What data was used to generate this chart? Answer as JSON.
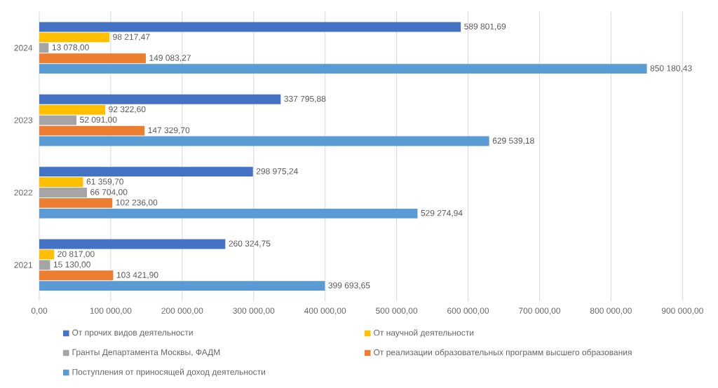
{
  "chart_data": {
    "type": "bar",
    "orientation": "horizontal",
    "categories": [
      "2024",
      "2023",
      "2022",
      "2021"
    ],
    "series": [
      {
        "name": "От прочих видов деятельности",
        "color": "#4472c4",
        "values": [
          589801.69,
          337795.88,
          298975.24,
          260324.75
        ],
        "value_labels": [
          "589 801,69",
          "337 795,88",
          "298 975,24",
          "260 324,75"
        ]
      },
      {
        "name": "От научной деятельности",
        "color": "#ffc000",
        "values": [
          98217.47,
          92322.6,
          61359.7,
          20817.0
        ],
        "value_labels": [
          "98 217,47",
          "92 322,60",
          "61 359,70",
          "20 817,00"
        ]
      },
      {
        "name": "Гранты Департамента Москвы, ФАДМ",
        "color": "#a5a5a5",
        "values": [
          13078.0,
          52091.0,
          66704.0,
          15130.0
        ],
        "value_labels": [
          "13 078,00",
          "52 091,00",
          "66 704,00",
          "15 130,00"
        ]
      },
      {
        "name": "От реализации образовательных программ высшего образования",
        "color": "#ed7d31",
        "values": [
          149083.27,
          147329.7,
          102236.0,
          103421.9
        ],
        "value_labels": [
          "149 083,27",
          "147 329,70",
          "102 236,00",
          "103 421,90"
        ]
      },
      {
        "name": "Поступления от приносящей доход деятельности",
        "color": "#5b9bd5",
        "values": [
          850180.43,
          629539.18,
          529274.94,
          399693.65
        ],
        "value_labels": [
          "850 180,43",
          "629 539,18",
          "529 274,94",
          "399 693,65"
        ]
      }
    ],
    "xlim": [
      0,
      900000
    ],
    "xticks": [
      {
        "value": 0,
        "label": "0,00"
      },
      {
        "value": 100000,
        "label": "100 000,00"
      },
      {
        "value": 200000,
        "label": "200 000,00"
      },
      {
        "value": 300000,
        "label": "300 000,00"
      },
      {
        "value": 400000,
        "label": "400 000,00"
      },
      {
        "value": 500000,
        "label": "500 000,00"
      },
      {
        "value": 600000,
        "label": "600 000,00"
      },
      {
        "value": 700000,
        "label": "700 000,00"
      },
      {
        "value": 800000,
        "label": "800 000,00"
      },
      {
        "value": 900000,
        "label": "900 000,00"
      }
    ],
    "grid": "x",
    "legend": "bottom"
  }
}
